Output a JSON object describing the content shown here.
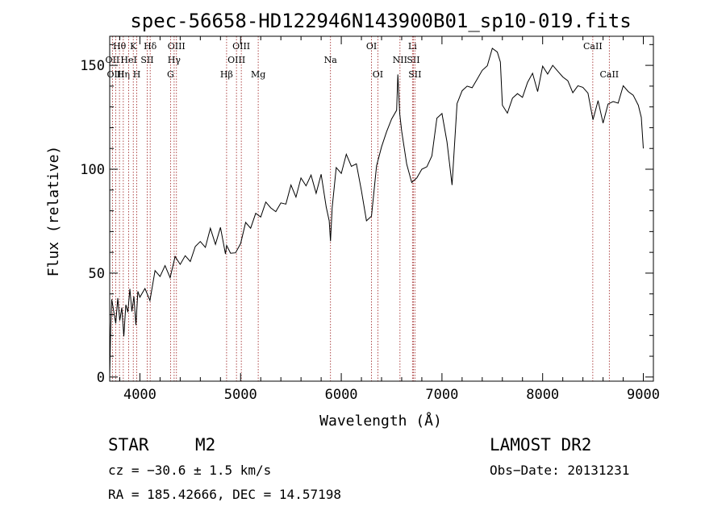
{
  "chart_data": {
    "type": "line",
    "title": "spec-56658-HD122946N143900B01_sp10-019.fits",
    "xlabel": "Wavelength (Å)",
    "ylabel": "Flux (relative)",
    "xlim": [
      3700,
      9100
    ],
    "ylim": [
      -2,
      164
    ],
    "x_ticks": [
      4000,
      5000,
      6000,
      7000,
      8000,
      9000
    ],
    "y_ticks": [
      0,
      50,
      100,
      150
    ],
    "grid": false,
    "series": [
      {
        "x": [
          3700,
          3710,
          3720,
          3740,
          3760,
          3780,
          3800,
          3820,
          3840,
          3860,
          3880,
          3900,
          3920,
          3940,
          3960,
          3980,
          4000,
          4050,
          4100,
          4150,
          4200,
          4250,
          4300,
          4350,
          4400,
          4450,
          4500,
          4550,
          4600,
          4650,
          4700,
          4750,
          4800,
          4850,
          4861,
          4900,
          4950,
          5000,
          5050,
          5100,
          5150,
          5200,
          5250,
          5300,
          5350,
          5400,
          5450,
          5500,
          5550,
          5600,
          5650,
          5700,
          5750,
          5800,
          5850,
          5880,
          5893,
          5910,
          5950,
          6000,
          6050,
          6100,
          6150,
          6200,
          6250,
          6300,
          6350,
          6400,
          6450,
          6500,
          6550,
          6562,
          6580,
          6600,
          6650,
          6700,
          6750,
          6800,
          6850,
          6900,
          6950,
          7000,
          7050,
          7100,
          7150,
          7200,
          7250,
          7300,
          7350,
          7400,
          7450,
          7500,
          7550,
          7580,
          7600,
          7650,
          7700,
          7750,
          7800,
          7850,
          7900,
          7950,
          8000,
          8050,
          8100,
          8150,
          8200,
          8250,
          8300,
          8350,
          8400,
          8450,
          8500,
          8550,
          8600,
          8650,
          8700,
          8750,
          8800,
          8850,
          8900,
          8950,
          8980,
          9000
        ],
        "y": [
          0,
          20,
          35,
          30,
          25,
          38,
          28,
          35,
          22,
          38,
          28,
          40,
          30,
          38,
          25,
          42,
          40,
          45,
          40,
          48,
          46,
          52,
          47,
          58,
          55,
          60,
          58,
          66,
          62,
          60,
          70,
          63,
          72,
          60,
          65,
          62,
          63,
          61,
          72,
          70,
          78,
          77,
          85,
          83,
          82,
          87,
          80,
          90,
          85,
          95,
          92,
          98,
          90,
          100,
          85,
          72,
          63,
          80,
          100,
          98,
          108,
          103,
          105,
          93,
          72,
          75,
          100,
          110,
          118,
          125,
          130,
          148,
          130,
          115,
          100,
          92,
          95,
          100,
          102,
          108,
          127,
          130,
          110,
          90,
          130,
          137,
          140,
          140,
          145,
          150,
          153,
          155,
          154,
          150,
          130,
          127,
          135,
          138,
          137,
          145,
          143,
          135,
          148,
          145,
          150,
          148,
          146,
          145,
          140,
          137,
          137,
          135,
          123,
          133,
          123,
          133,
          135,
          135,
          137,
          135,
          134,
          130,
          125,
          110
        ]
      }
    ],
    "lines": [
      {
        "label": "Hθ",
        "x": 3797,
        "row": 1
      },
      {
        "label": "OII",
        "x": 3727,
        "row": 2
      },
      {
        "label": "OIII",
        "x": 3760,
        "row": 3
      },
      {
        "label": "Hη",
        "x": 3835,
        "row": 3
      },
      {
        "label": "HeI",
        "x": 3889,
        "row": 2
      },
      {
        "label": "K",
        "x": 3934,
        "row": 1
      },
      {
        "label": "H",
        "x": 3969,
        "row": 3
      },
      {
        "label": "SII",
        "x": 4072,
        "row": 2
      },
      {
        "label": "Hδ",
        "x": 4102,
        "row": 1
      },
      {
        "label": "OIII",
        "x": 4363,
        "row": 1
      },
      {
        "label": "Hγ",
        "x": 4340,
        "row": 2
      },
      {
        "label": "G",
        "x": 4304,
        "row": 3
      },
      {
        "label": "Hβ",
        "x": 4861,
        "row": 3
      },
      {
        "label": "OIII",
        "x": 5007,
        "row": 1
      },
      {
        "label": "OIII",
        "x": 4959,
        "row": 2
      },
      {
        "label": "Mg",
        "x": 5175,
        "row": 3
      },
      {
        "label": "Na",
        "x": 5893,
        "row": 2
      },
      {
        "label": "OI",
        "x": 6300,
        "row": 1
      },
      {
        "label": "OI",
        "x": 6363,
        "row": 3
      },
      {
        "label": "NII",
        "x": 6583,
        "row": 2
      },
      {
        "label": "Li",
        "x": 6707,
        "row": 1
      },
      {
        "label": "SII",
        "x": 6716,
        "row": 2
      },
      {
        "label": "SII",
        "x": 6731,
        "row": 3
      },
      {
        "label": "CaII",
        "x": 8498,
        "row": 1
      },
      {
        "label": "CaII",
        "x": 8662,
        "row": 3
      }
    ]
  },
  "info": {
    "class": "STAR",
    "subclass": "M2",
    "survey": "LAMOST DR2",
    "cz": "cz = −30.6 ± 1.5 km/s",
    "obs_date": "Obs−Date: 20131231",
    "coords": "RA = 185.42666, DEC =  14.57198"
  }
}
